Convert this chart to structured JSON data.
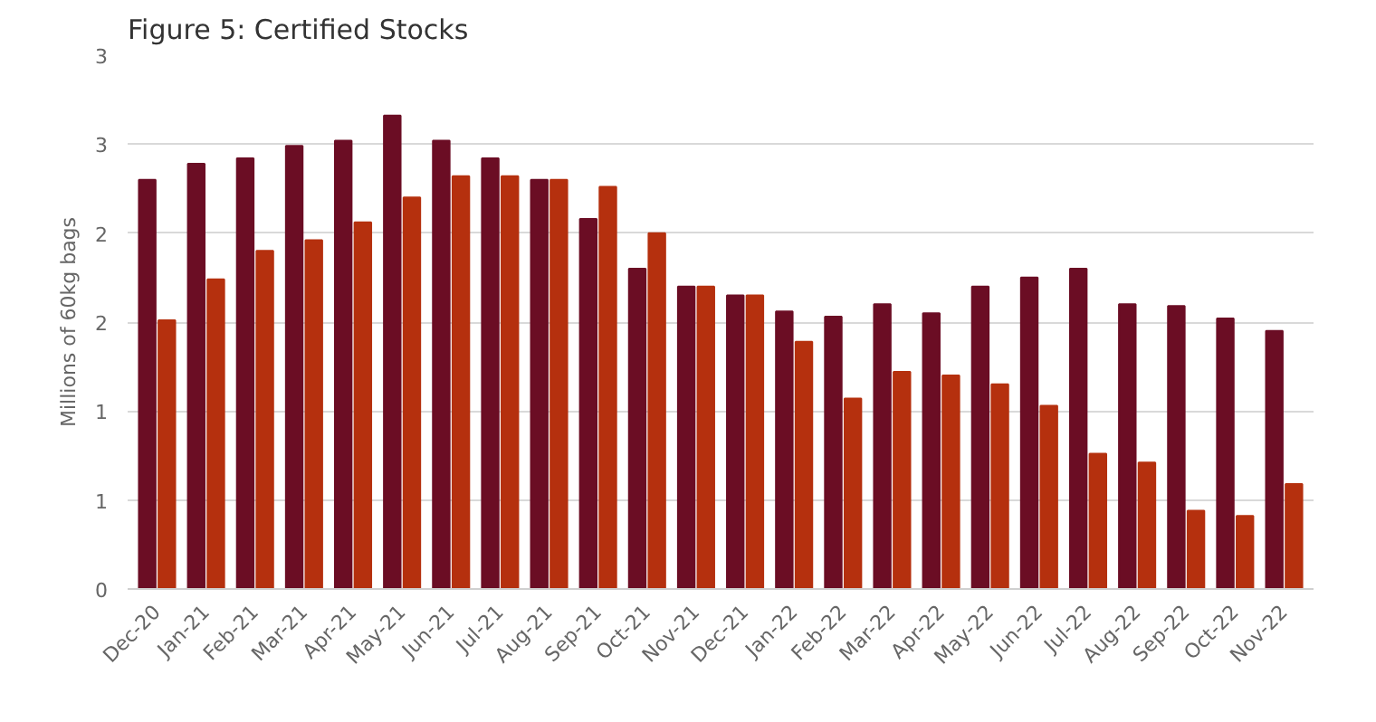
{
  "chart_data": {
    "type": "bar",
    "title": "Figure 5: Certified Stocks",
    "ylabel": "Millions of 60kg bags",
    "categories": [
      "Dec-20",
      "Jan-21",
      "Feb-21",
      "Mar-21",
      "Apr-21",
      "May-21",
      "Jun-21",
      "Jul-21",
      "Aug-21",
      "Sep-21",
      "Oct-21",
      "Nov-21",
      "Dec-21",
      "Jan-22",
      "Feb-22",
      "Mar-22",
      "Apr-22",
      "May-22",
      "Jun-22",
      "Jul-22",
      "Aug-22",
      "Sep-22",
      "Oct-22",
      "Nov-22"
    ],
    "series": [
      {
        "color": "#6b0d24",
        "values": [
          2.3,
          2.39,
          2.42,
          2.49,
          2.52,
          2.66,
          2.52,
          2.42,
          2.3,
          2.08,
          1.8,
          1.7,
          1.65,
          1.56,
          1.53,
          1.6,
          1.55,
          1.7,
          1.75,
          1.8,
          1.6,
          1.59,
          1.52,
          1.45
        ]
      },
      {
        "color": "#b5300e",
        "values": [
          1.51,
          1.74,
          1.9,
          1.96,
          2.06,
          2.2,
          2.32,
          2.32,
          2.3,
          2.26,
          2.0,
          1.7,
          1.65,
          1.39,
          1.07,
          1.22,
          1.2,
          1.15,
          1.03,
          0.76,
          0.71,
          0.44,
          0.41,
          0.59
        ]
      }
    ],
    "ylim": [
      0,
      3
    ],
    "yticks": [
      0,
      {
        "value": 0.5,
        "label": "1"
      },
      {
        "value": 1,
        "label": "1"
      },
      {
        "value": 1.5,
        "label": "2"
      },
      {
        "value": 2,
        "label": "2"
      },
      {
        "value": 2.5,
        "label": "3"
      },
      {
        "value": 3,
        "label": "3"
      }
    ],
    "grid": "y"
  }
}
